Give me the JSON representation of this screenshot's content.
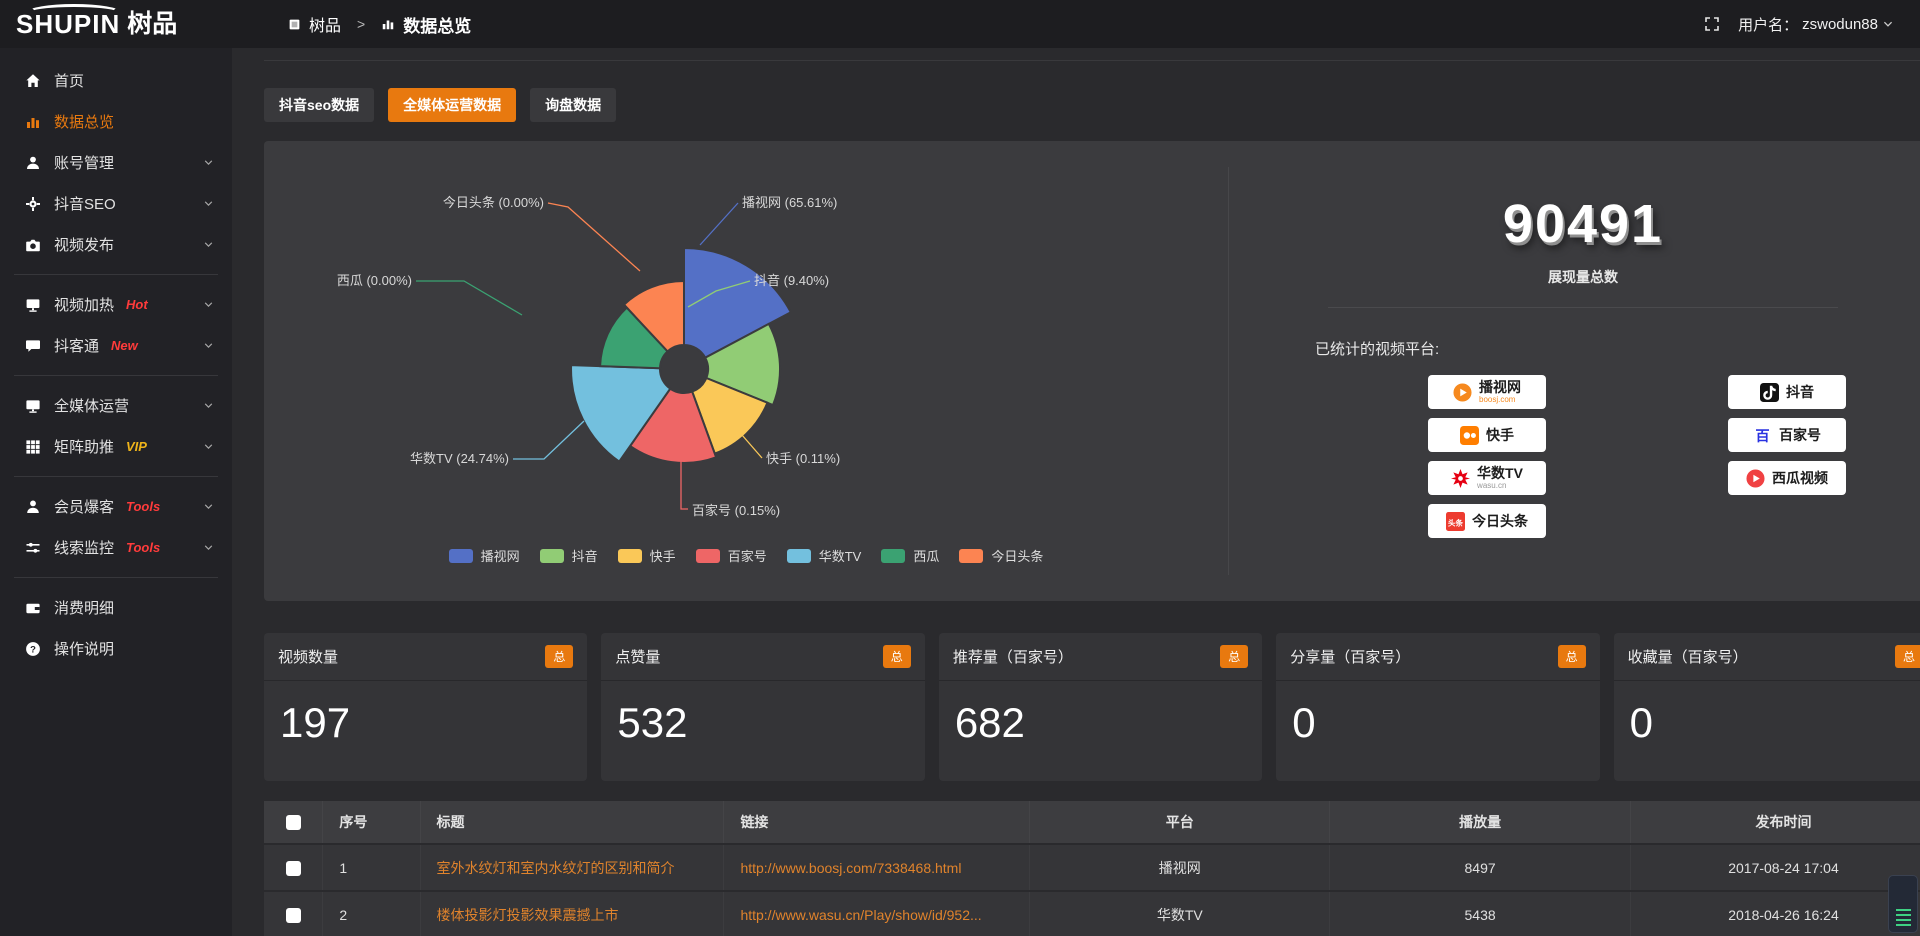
{
  "brand": {
    "name_en": "SHUPIN",
    "name_cn": "树品"
  },
  "topbar": {
    "breadcrumb_root": "树品",
    "breadcrumb_sep": ">",
    "breadcrumb_current": "数据总览",
    "username_label": "用户名：",
    "username": "zswodun88"
  },
  "tabs": [
    {
      "label": "抖音seo数据",
      "active": false
    },
    {
      "label": "全媒体运营数据",
      "active": true
    },
    {
      "label": "询盘数据",
      "active": false
    }
  ],
  "sidebar": {
    "items": [
      {
        "icon": "home",
        "label": "首页",
        "active": false,
        "chevron": false,
        "badge": "",
        "badge_color": "",
        "divider_after": false
      },
      {
        "icon": "chart",
        "label": "数据总览",
        "active": true,
        "chevron": false,
        "badge": "",
        "badge_color": "",
        "divider_after": false
      },
      {
        "icon": "user",
        "label": "账号管理",
        "active": false,
        "chevron": true,
        "badge": "",
        "badge_color": "",
        "divider_after": false
      },
      {
        "icon": "gear",
        "label": "抖音SEO",
        "active": false,
        "chevron": true,
        "badge": "",
        "badge_color": "",
        "divider_after": false
      },
      {
        "icon": "publish",
        "label": "视频发布",
        "active": false,
        "chevron": true,
        "badge": "",
        "badge_color": "",
        "divider_after": true
      },
      {
        "icon": "heat",
        "label": "视频加热",
        "active": false,
        "chevron": true,
        "badge": "Hot",
        "badge_color": "#ff3b3b",
        "divider_after": false
      },
      {
        "icon": "chat",
        "label": "抖客通",
        "active": false,
        "chevron": true,
        "badge": "New",
        "badge_color": "#ff3b3b",
        "divider_after": true
      },
      {
        "icon": "monitor",
        "label": "全媒体运营",
        "active": false,
        "chevron": true,
        "badge": "",
        "badge_color": "",
        "divider_after": false
      },
      {
        "icon": "grid",
        "label": "矩阵助推",
        "active": false,
        "chevron": true,
        "badge": "VIP",
        "badge_color": "#efb41a",
        "divider_after": true
      },
      {
        "icon": "person",
        "label": "会员爆客",
        "active": false,
        "chevron": true,
        "badge": "Tools",
        "badge_color": "#ff3b3b",
        "divider_after": false
      },
      {
        "icon": "sliders",
        "label": "线索监控",
        "active": false,
        "chevron": true,
        "badge": "Tools",
        "badge_color": "#ff3b3b",
        "divider_after": true
      },
      {
        "icon": "wallet",
        "label": "消费明细",
        "active": false,
        "chevron": false,
        "badge": "",
        "badge_color": "",
        "divider_after": false
      },
      {
        "icon": "question",
        "label": "操作说明",
        "active": false,
        "chevron": false,
        "badge": "",
        "badge_color": "",
        "divider_after": false
      }
    ]
  },
  "chart_data": {
    "type": "pie",
    "style": "nightingale-rose-donut",
    "legend_position": "bottom",
    "slices": [
      {
        "name": "播视网",
        "pct": 65.61,
        "label": "播视网 (65.61%)",
        "color": "#5470c6"
      },
      {
        "name": "抖音",
        "pct": 9.4,
        "label": "抖音 (9.40%)",
        "color": "#91cc75"
      },
      {
        "name": "快手",
        "pct": 0.11,
        "label": "快手 (0.11%)",
        "color": "#fac858"
      },
      {
        "name": "百家号",
        "pct": 0.15,
        "label": "百家号 (0.15%)",
        "color": "#ee6666"
      },
      {
        "name": "华数TV",
        "pct": 24.74,
        "label": "华数TV (24.74%)",
        "color": "#73c0de"
      },
      {
        "name": "西瓜",
        "pct": 0.0,
        "label": "西瓜 (0.00%)",
        "color": "#3ba272"
      },
      {
        "name": "今日头条",
        "pct": 0.0,
        "label": "今日头条 (0.00%)",
        "color": "#fc8452"
      }
    ],
    "legend": [
      "播视网",
      "抖音",
      "快手",
      "百家号",
      "华数TV",
      "西瓜",
      "今日头条"
    ]
  },
  "summary": {
    "total": "90491",
    "total_label": "展现量总数",
    "platforms_label": "已统计的视频平台:",
    "platforms": [
      {
        "name": "播视网",
        "sub": "boosj.com",
        "sub_color": "#f6891e",
        "icon": "boosj"
      },
      {
        "name": "抖音",
        "sub": "",
        "sub_color": "",
        "icon": "douyin"
      },
      {
        "name": "快手",
        "sub": "",
        "sub_color": "",
        "icon": "kuaishou"
      },
      {
        "name": "百家号",
        "sub": "",
        "sub_color": "",
        "icon": "baijiahao"
      },
      {
        "name": "华数TV",
        "sub": "wasu.cn",
        "sub_color": "#999999",
        "icon": "wasu"
      },
      {
        "name": "西瓜视频",
        "sub": "",
        "sub_color": "",
        "icon": "xigua"
      },
      {
        "name": "今日头条",
        "sub": "",
        "sub_color": "",
        "icon": "toutiao"
      }
    ]
  },
  "stat_cards": [
    {
      "title": "视频数量",
      "badge": "总",
      "value": "197"
    },
    {
      "title": "点赞量",
      "badge": "总",
      "value": "532"
    },
    {
      "title": "推荐量（百家号）",
      "badge": "总",
      "value": "682"
    },
    {
      "title": "分享量（百家号）",
      "badge": "总",
      "value": "0"
    },
    {
      "title": "收藏量（百家号）",
      "badge": "总",
      "value": "0"
    }
  ],
  "table": {
    "headers": [
      "序号",
      "标题",
      "链接",
      "平台",
      "播放量",
      "发布时间"
    ],
    "rows": [
      {
        "index": "1",
        "title": "室外水纹灯和室内水纹灯的区别和简介",
        "link": "http://www.boosj.com/7338468.html",
        "platform": "播视网",
        "plays": "8497",
        "time": "2017-08-24 17:04"
      },
      {
        "index": "2",
        "title": "楼体投影灯投影效果震撼上市",
        "link": "http://www.wasu.cn/Play/show/id/952...",
        "platform": "华数TV",
        "plays": "5438",
        "time": "2018-04-26 16:24"
      }
    ]
  }
}
